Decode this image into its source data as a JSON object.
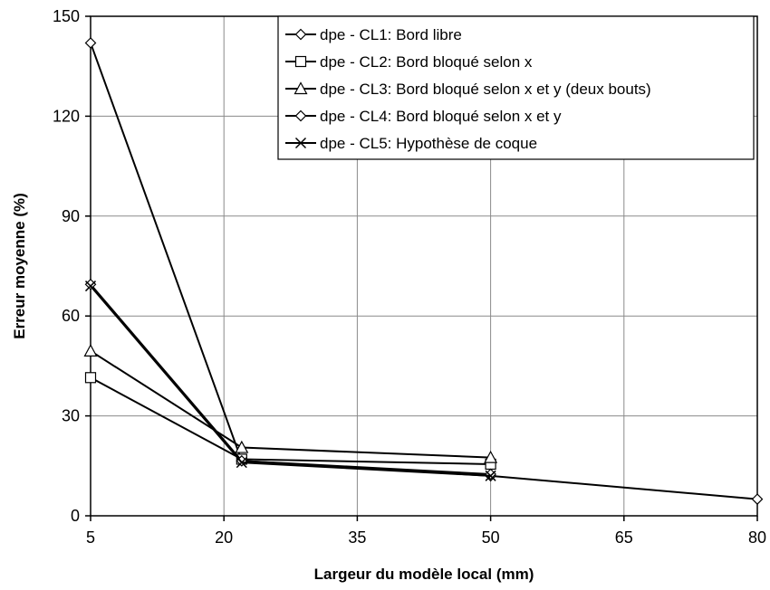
{
  "chart_data": {
    "type": "line",
    "title": "",
    "xlabel": "Largeur du modèle local (mm)",
    "ylabel": "Erreur moyenne (%)",
    "xlim": [
      5,
      80
    ],
    "ylim": [
      0,
      150
    ],
    "xticks": [
      "5",
      "20",
      "35",
      "50",
      "65",
      "80"
    ],
    "yticks": [
      "0",
      "30",
      "60",
      "90",
      "120",
      "150"
    ],
    "grid": true,
    "legend_position": "top-right",
    "series": [
      {
        "name": "dpe - CL1: Bord libre",
        "marker": "diamond",
        "x": [
          5,
          22,
          50,
          80
        ],
        "y": [
          142,
          16.5,
          12,
          5
        ]
      },
      {
        "name": "dpe - CL2: Bord bloqué selon x",
        "marker": "square",
        "x": [
          5,
          22,
          50
        ],
        "y": [
          41.5,
          17,
          15.5
        ]
      },
      {
        "name": "dpe - CL3: Bord bloqué selon x et y (deux bouts)",
        "marker": "triangle",
        "x": [
          5,
          22,
          50
        ],
        "y": [
          49.5,
          20.5,
          17.5
        ]
      },
      {
        "name": "dpe - CL4: Bord bloqué selon x et y",
        "marker": "diamond",
        "x": [
          5,
          22,
          50
        ],
        "y": [
          69.5,
          16.5,
          12.5
        ]
      },
      {
        "name": "dpe - CL5: Hypothèse de coque",
        "marker": "x",
        "x": [
          5,
          22,
          50
        ],
        "y": [
          69,
          16,
          12
        ]
      }
    ]
  }
}
